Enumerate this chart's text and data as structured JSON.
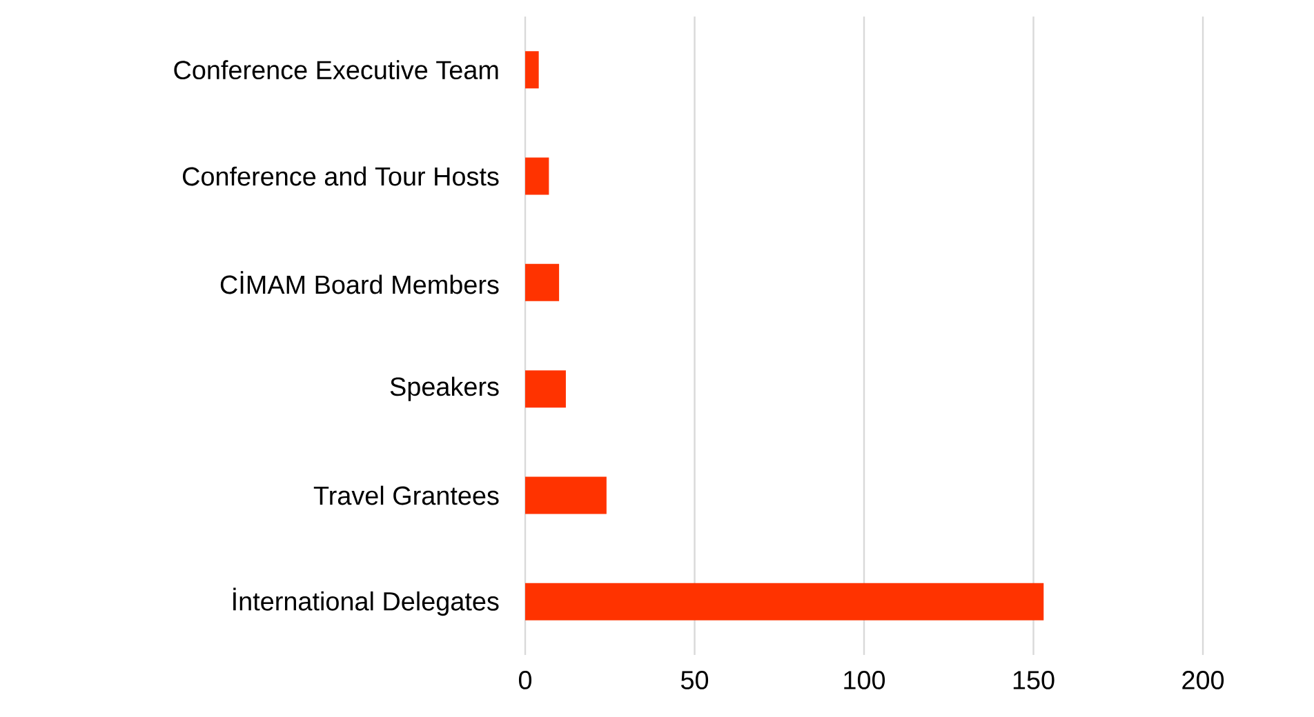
{
  "chart_data": {
    "type": "bar",
    "orientation": "horizontal",
    "categories": [
      "Conference Executive Team",
      "Conference and Tour Hosts",
      "CİMAM Board Members",
      "Speakers",
      "Travel Grantees",
      "İnternational Delegates"
    ],
    "values": [
      4,
      7,
      10,
      12,
      24,
      153
    ],
    "color": "#ff3300",
    "xlim": [
      0,
      200
    ],
    "xticks": [
      0,
      50,
      100,
      150,
      200
    ],
    "grid": "x"
  }
}
